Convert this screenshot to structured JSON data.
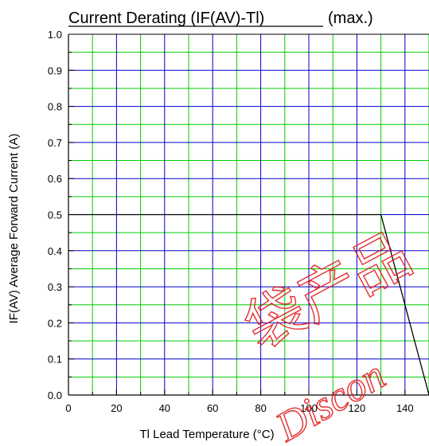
{
  "colors": {
    "major_grid": "#0000cc",
    "minor_grid": "#00cc00",
    "curve": "#000000",
    "watermark": "#e01818"
  },
  "watermark": {
    "text": "Discon",
    "glyphs": "袋产品"
  },
  "chart_data": {
    "type": "line",
    "title_underlined": "Current Derating (IF(AV)-Tl)",
    "title_suffix": "(max.)",
    "xlabel": "Tl Lead Temperature (°C)",
    "ylabel": "IF(AV) Average Forward Current (A)",
    "xlim": [
      0,
      150
    ],
    "ylim": [
      0,
      1.0
    ],
    "x_major_ticks": [
      0,
      20,
      40,
      60,
      80,
      100,
      120,
      140
    ],
    "x_tick_labels": [
      "0",
      "20",
      "40",
      "60",
      "80",
      "100",
      "120",
      "140"
    ],
    "x_minor_ticks": [
      10,
      30,
      50,
      70,
      90,
      110,
      130,
      150
    ],
    "y_major_ticks": [
      0,
      0.1,
      0.2,
      0.3,
      0.4,
      0.5,
      0.6,
      0.7,
      0.8,
      0.9,
      1.0
    ],
    "y_tick_labels": [
      "0.0",
      "0.1",
      "0.2",
      "0.3",
      "0.4",
      "0.5",
      "0.6",
      "0.7",
      "0.8",
      "0.9",
      "1.0"
    ],
    "y_minor_ticks": [
      0.05,
      0.15,
      0.25,
      0.35,
      0.45,
      0.55,
      0.65,
      0.75,
      0.85,
      0.95
    ],
    "grid": true,
    "legend": "none",
    "series": [
      {
        "x": [
          0,
          130,
          150
        ],
        "y": [
          0.5,
          0.5,
          0.0
        ]
      }
    ]
  }
}
